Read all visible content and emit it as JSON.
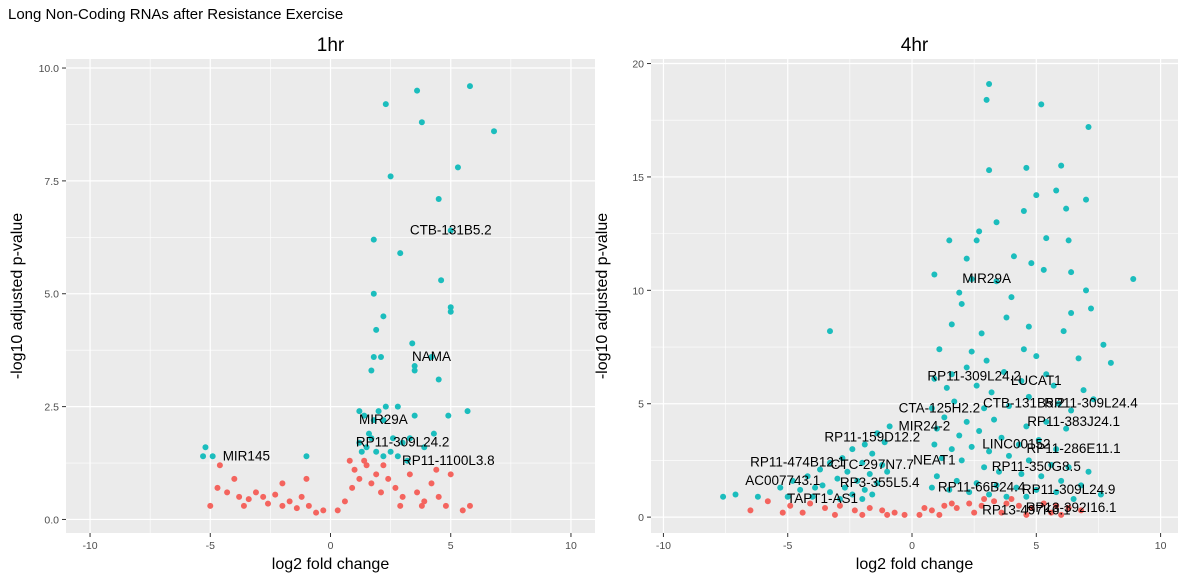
{
  "figure": {
    "title": "Long Non-Coding RNAs after Resistance Exercise"
  },
  "colors": {
    "panel_bg": "#EBEBEB",
    "grid": "#FFFFFF",
    "significant": "#1BBDBD",
    "not_significant": "#F4645E",
    "text": "#000000",
    "tick_text": "#4D4D4D"
  },
  "chart_data": [
    {
      "type": "scatter",
      "title": "1hr",
      "xlabel": "log2 fold change",
      "ylabel": "-log10 adjusted p-value",
      "xlim": [
        -11,
        11
      ],
      "ylim": [
        -0.3,
        10.2
      ],
      "xticks": [
        -10,
        -5,
        0,
        5,
        10
      ],
      "yticks": [
        0.0,
        2.5,
        5.0,
        7.5,
        10.0
      ],
      "ytick_labels": [
        "0.0",
        "2.5",
        "5.0",
        "7.5",
        "10.0"
      ],
      "grid": true,
      "legend": "none",
      "significant_points": [
        [
          5.8,
          9.6
        ],
        [
          2.3,
          9.2
        ],
        [
          3.6,
          9.5
        ],
        [
          3.8,
          8.8
        ],
        [
          6.8,
          8.6
        ],
        [
          5.3,
          7.8
        ],
        [
          2.5,
          7.6
        ],
        [
          4.5,
          7.1
        ],
        [
          5.0,
          6.4
        ],
        [
          1.8,
          6.2
        ],
        [
          2.9,
          5.9
        ],
        [
          4.6,
          5.3
        ],
        [
          1.8,
          5.0
        ],
        [
          5.0,
          4.7
        ],
        [
          5.0,
          4.6
        ],
        [
          2.2,
          4.5
        ],
        [
          1.9,
          4.2
        ],
        [
          3.4,
          3.9
        ],
        [
          1.8,
          3.6
        ],
        [
          2.1,
          3.6
        ],
        [
          4.2,
          3.6
        ],
        [
          3.5,
          3.4
        ],
        [
          3.5,
          3.3
        ],
        [
          1.7,
          3.3
        ],
        [
          4.5,
          3.1
        ],
        [
          2.3,
          2.5
        ],
        [
          2.8,
          2.5
        ],
        [
          3.5,
          2.3
        ],
        [
          4.9,
          2.3
        ],
        [
          5.7,
          2.4
        ],
        [
          2.2,
          2.2
        ],
        [
          2.0,
          2.4
        ],
        [
          1.2,
          2.4
        ],
        [
          1.4,
          2.3
        ],
        [
          1.8,
          2.2
        ],
        [
          2.6,
          1.8
        ],
        [
          3.0,
          1.7
        ],
        [
          3.3,
          1.8
        ],
        [
          1.6,
          1.9
        ],
        [
          1.2,
          1.7
        ],
        [
          1.5,
          1.6
        ],
        [
          1.9,
          1.5
        ],
        [
          2.2,
          1.4
        ],
        [
          2.5,
          1.5
        ],
        [
          1.3,
          1.5
        ],
        [
          2.8,
          1.4
        ],
        [
          4.3,
          1.9
        ],
        [
          3.9,
          1.6
        ],
        [
          -5.2,
          1.6
        ],
        [
          -5.3,
          1.4
        ],
        [
          -4.9,
          1.4
        ],
        [
          -1.0,
          1.4
        ],
        [
          3.2,
          1.3
        ],
        [
          1.7,
          1.8
        ]
      ],
      "nonsignificant_points": [
        [
          -4.6,
          1.2
        ],
        [
          -4.0,
          0.9
        ],
        [
          -4.3,
          0.6
        ],
        [
          -3.8,
          0.5
        ],
        [
          -3.4,
          0.45
        ],
        [
          -3.1,
          0.6
        ],
        [
          -2.8,
          0.5
        ],
        [
          -2.6,
          0.35
        ],
        [
          -2.3,
          0.55
        ],
        [
          -2.0,
          0.3
        ],
        [
          -1.7,
          0.4
        ],
        [
          -1.4,
          0.25
        ],
        [
          -1.2,
          0.5
        ],
        [
          -0.9,
          0.3
        ],
        [
          -0.6,
          0.15
        ],
        [
          -0.3,
          0.2
        ],
        [
          0.3,
          0.2
        ],
        [
          0.6,
          0.4
        ],
        [
          0.9,
          0.7
        ],
        [
          1.0,
          1.1
        ],
        [
          1.2,
          0.9
        ],
        [
          1.5,
          1.2
        ],
        [
          1.7,
          0.8
        ],
        [
          1.9,
          1.0
        ],
        [
          2.1,
          0.6
        ],
        [
          2.4,
          0.9
        ],
        [
          2.7,
          0.7
        ],
        [
          3.0,
          0.5
        ],
        [
          3.3,
          1.0
        ],
        [
          3.6,
          0.6
        ],
        [
          3.9,
          0.4
        ],
        [
          4.2,
          0.8
        ],
        [
          4.5,
          0.5
        ],
        [
          4.8,
          0.3
        ],
        [
          5.0,
          1.0
        ],
        [
          5.5,
          0.2
        ],
        [
          5.8,
          0.3
        ],
        [
          0.8,
          1.3
        ],
        [
          1.4,
          1.3
        ],
        [
          2.2,
          1.2
        ],
        [
          -2.0,
          0.8
        ],
        [
          -3.6,
          0.3
        ],
        [
          -4.7,
          0.7
        ],
        [
          -5.0,
          0.3
        ],
        [
          2.9,
          0.3
        ],
        [
          3.8,
          0.3
        ],
        [
          4.4,
          1.1
        ],
        [
          -1.0,
          0.9
        ]
      ],
      "annotations": [
        {
          "label": "CTB-131B5.2",
          "x": 5.0,
          "y": 6.4
        },
        {
          "label": "NAMA",
          "x": 4.2,
          "y": 3.6
        },
        {
          "label": "MIR29A",
          "x": 2.2,
          "y": 2.2
        },
        {
          "label": "RP11-309L24.2",
          "x": 3.0,
          "y": 1.7
        },
        {
          "label": "RP11-1100L3.8",
          "x": 4.9,
          "y": 1.3
        },
        {
          "label": "MIR145",
          "x": -3.5,
          "y": 1.4
        }
      ]
    },
    {
      "type": "scatter",
      "title": "4hr",
      "xlabel": "log2 fold change",
      "ylabel": "-log10 adjusted p-value",
      "xlim": [
        -10.5,
        10.7
      ],
      "ylim": [
        -0.7,
        20.2
      ],
      "xticks": [
        -10,
        -5,
        0,
        5,
        10
      ],
      "yticks": [
        0,
        5,
        10,
        15,
        20
      ],
      "ytick_labels": [
        "0",
        "5",
        "10",
        "15",
        "20"
      ],
      "grid": true,
      "legend": "none",
      "significant_points": [
        [
          3.1,
          19.1
        ],
        [
          3.0,
          18.4
        ],
        [
          5.2,
          18.2
        ],
        [
          7.1,
          17.2
        ],
        [
          6.0,
          15.5
        ],
        [
          3.1,
          15.3
        ],
        [
          4.6,
          15.4
        ],
        [
          5.8,
          14.4
        ],
        [
          5.0,
          14.2
        ],
        [
          6.2,
          13.6
        ],
        [
          7.0,
          14.0
        ],
        [
          4.5,
          13.5
        ],
        [
          3.4,
          13.0
        ],
        [
          2.7,
          12.6
        ],
        [
          5.4,
          12.3
        ],
        [
          1.5,
          12.2
        ],
        [
          2.6,
          12.2
        ],
        [
          6.3,
          12.2
        ],
        [
          4.1,
          11.5
        ],
        [
          2.2,
          11.4
        ],
        [
          4.8,
          11.2
        ],
        [
          5.3,
          10.9
        ],
        [
          6.4,
          10.8
        ],
        [
          0.9,
          10.7
        ],
        [
          2.4,
          10.5
        ],
        [
          3.4,
          10.4
        ],
        [
          7.0,
          10.0
        ],
        [
          8.9,
          10.5
        ],
        [
          1.9,
          9.9
        ],
        [
          4.0,
          9.7
        ],
        [
          2.0,
          9.4
        ],
        [
          7.2,
          9.2
        ],
        [
          6.4,
          9.0
        ],
        [
          3.8,
          8.8
        ],
        [
          1.6,
          8.5
        ],
        [
          4.7,
          8.4
        ],
        [
          2.8,
          8.1
        ],
        [
          6.1,
          8.2
        ],
        [
          7.7,
          7.6
        ],
        [
          4.5,
          7.4
        ],
        [
          -3.3,
          8.2
        ],
        [
          2.4,
          7.3
        ],
        [
          1.1,
          7.4
        ],
        [
          5.0,
          7.1
        ],
        [
          6.7,
          7.0
        ],
        [
          8.0,
          6.8
        ],
        [
          3.0,
          6.9
        ],
        [
          3.7,
          6.4
        ],
        [
          5.4,
          6.3
        ],
        [
          2.2,
          6.6
        ],
        [
          1.6,
          6.3
        ],
        [
          0.9,
          6.1
        ],
        [
          4.4,
          6.0
        ],
        [
          5.7,
          5.8
        ],
        [
          6.9,
          5.6
        ],
        [
          1.4,
          5.7
        ],
        [
          2.6,
          5.8
        ],
        [
          3.2,
          5.5
        ],
        [
          4.7,
          5.3
        ],
        [
          5.9,
          5.0
        ],
        [
          7.3,
          5.2
        ],
        [
          1.7,
          5.1
        ],
        [
          2.9,
          4.8
        ],
        [
          3.9,
          4.9
        ],
        [
          6.4,
          4.7
        ],
        [
          0.8,
          4.8
        ],
        [
          1.3,
          4.4
        ],
        [
          2.2,
          4.2
        ],
        [
          3.3,
          4.3
        ],
        [
          4.6,
          4.0
        ],
        [
          5.4,
          4.2
        ],
        [
          6.2,
          3.9
        ],
        [
          1.0,
          3.9
        ],
        [
          1.9,
          3.6
        ],
        [
          2.7,
          3.8
        ],
        [
          3.6,
          3.5
        ],
        [
          4.3,
          3.2
        ],
        [
          5.1,
          3.4
        ],
        [
          5.8,
          3.0
        ],
        [
          0.9,
          3.2
        ],
        [
          1.6,
          3.0
        ],
        [
          2.4,
          3.1
        ],
        [
          3.1,
          2.9
        ],
        [
          3.9,
          2.7
        ],
        [
          4.7,
          2.5
        ],
        [
          5.6,
          2.3
        ],
        [
          6.3,
          2.2
        ],
        [
          7.1,
          2.0
        ],
        [
          1.2,
          2.6
        ],
        [
          2.0,
          2.5
        ],
        [
          2.9,
          2.2
        ],
        [
          3.5,
          2.0
        ],
        [
          4.4,
          1.9
        ],
        [
          5.2,
          1.8
        ],
        [
          6.0,
          1.6
        ],
        [
          6.8,
          1.4
        ],
        [
          1.0,
          1.8
        ],
        [
          1.8,
          1.6
        ],
        [
          2.6,
          1.5
        ],
        [
          3.4,
          1.4
        ],
        [
          4.2,
          1.3
        ],
        [
          5.0,
          1.2
        ],
        [
          5.8,
          1.1
        ],
        [
          0.8,
          1.3
        ],
        [
          1.5,
          1.2
        ],
        [
          2.3,
          1.1
        ],
        [
          3.1,
          1.0
        ],
        [
          3.8,
          0.9
        ],
        [
          4.6,
          0.9
        ],
        [
          6.5,
          0.8
        ],
        [
          7.6,
          1.0
        ],
        [
          -0.9,
          4.0
        ],
        [
          -1.4,
          3.7
        ],
        [
          -1.1,
          3.3
        ],
        [
          -1.9,
          3.2
        ],
        [
          -2.4,
          3.0
        ],
        [
          -1.6,
          2.8
        ],
        [
          -2.8,
          2.6
        ],
        [
          -3.3,
          2.4
        ],
        [
          -2.0,
          2.4
        ],
        [
          -1.2,
          2.3
        ],
        [
          -3.7,
          2.1
        ],
        [
          -2.6,
          2.0
        ],
        [
          -1.7,
          1.9
        ],
        [
          -4.2,
          1.8
        ],
        [
          -3.0,
          1.7
        ],
        [
          -2.2,
          1.6
        ],
        [
          -1.4,
          1.5
        ],
        [
          -4.8,
          1.6
        ],
        [
          -3.6,
          1.4
        ],
        [
          -2.7,
          1.3
        ],
        [
          -1.9,
          1.2
        ],
        [
          -5.3,
          1.3
        ],
        [
          -4.5,
          1.2
        ],
        [
          -3.3,
          1.1
        ],
        [
          -2.4,
          1.0
        ],
        [
          -1.6,
          1.0
        ],
        [
          -6.2,
          0.9
        ],
        [
          -5.0,
          0.9
        ],
        [
          -4.0,
          0.9
        ],
        [
          -2.9,
          0.8
        ],
        [
          -2.0,
          0.8
        ],
        [
          -7.1,
          1.0
        ],
        [
          -7.6,
          0.9
        ],
        [
          -3.9,
          1.3
        ],
        [
          -1.0,
          2.0
        ]
      ],
      "nonsignificant_points": [
        [
          -5.8,
          0.7
        ],
        [
          -4.9,
          0.5
        ],
        [
          -4.1,
          0.6
        ],
        [
          -3.5,
          0.4
        ],
        [
          -2.9,
          0.5
        ],
        [
          -2.3,
          0.3
        ],
        [
          -1.7,
          0.4
        ],
        [
          -1.2,
          0.3
        ],
        [
          -0.7,
          0.2
        ],
        [
          -0.3,
          0.1
        ],
        [
          0.3,
          0.1
        ],
        [
          0.8,
          0.3
        ],
        [
          1.3,
          0.5
        ],
        [
          1.8,
          0.4
        ],
        [
          2.3,
          0.6
        ],
        [
          2.8,
          0.5
        ],
        [
          3.3,
          0.7
        ],
        [
          3.8,
          0.6
        ],
        [
          4.3,
          0.5
        ],
        [
          4.8,
          0.4
        ],
        [
          5.3,
          0.6
        ],
        [
          5.8,
          0.5
        ],
        [
          6.3,
          0.4
        ],
        [
          6.8,
          0.3
        ],
        [
          -6.5,
          0.3
        ],
        [
          -5.2,
          0.2
        ],
        [
          -4.4,
          0.2
        ],
        [
          -3.1,
          0.1
        ],
        [
          1.1,
          0.1
        ],
        [
          2.5,
          0.2
        ],
        [
          3.6,
          0.2
        ],
        [
          4.6,
          0.1
        ],
        [
          5.6,
          0.2
        ],
        [
          6.0,
          0.1
        ],
        [
          -2.0,
          0.1
        ],
        [
          -1.0,
          0.1
        ],
        [
          0.5,
          0.4
        ],
        [
          1.6,
          0.6
        ],
        [
          2.9,
          0.8
        ],
        [
          4.0,
          0.8
        ]
      ],
      "annotations": [
        {
          "label": "MIR29A",
          "x": 3.0,
          "y": 10.5
        },
        {
          "label": "RP11-309L24.2",
          "x": 2.5,
          "y": 6.2
        },
        {
          "label": "LUCAT1",
          "x": 5.0,
          "y": 6.0
        },
        {
          "label": "RP11-309L24.4",
          "x": 7.2,
          "y": 5.0
        },
        {
          "label": "CTA-125H2.2",
          "x": 1.1,
          "y": 4.8
        },
        {
          "label": "CTB-131B5.2",
          "x": 4.5,
          "y": 5.0
        },
        {
          "label": "RP11-383J24.1",
          "x": 6.5,
          "y": 4.2
        },
        {
          "label": "MIR24-2",
          "x": 0.5,
          "y": 4.0
        },
        {
          "label": "RP11-159D12.2",
          "x": -1.6,
          "y": 3.5
        },
        {
          "label": "LINC00152",
          "x": 4.2,
          "y": 3.2
        },
        {
          "label": "RP11-286E11.1",
          "x": 6.5,
          "y": 3.0
        },
        {
          "label": "RP11-474B12.1",
          "x": -4.6,
          "y": 2.4
        },
        {
          "label": "CTC-297N7.7",
          "x": -1.6,
          "y": 2.3
        },
        {
          "label": "NEAT1",
          "x": 0.9,
          "y": 2.5
        },
        {
          "label": "RP11-350G8.5",
          "x": 5.0,
          "y": 2.2
        },
        {
          "label": "AC007743.1",
          "x": -5.2,
          "y": 1.6
        },
        {
          "label": "RP3-355L5.4",
          "x": -1.3,
          "y": 1.5
        },
        {
          "label": "RP11-66B24.4",
          "x": 2.8,
          "y": 1.3
        },
        {
          "label": "RP11-309L24.9",
          "x": 6.3,
          "y": 1.2
        },
        {
          "label": "TAPT1-AS1",
          "x": -3.6,
          "y": 0.8
        },
        {
          "label": "RP13-497K6.1",
          "x": 4.6,
          "y": 0.3
        },
        {
          "label": "RP13-392I16.1",
          "x": 6.4,
          "y": 0.4
        }
      ]
    }
  ]
}
